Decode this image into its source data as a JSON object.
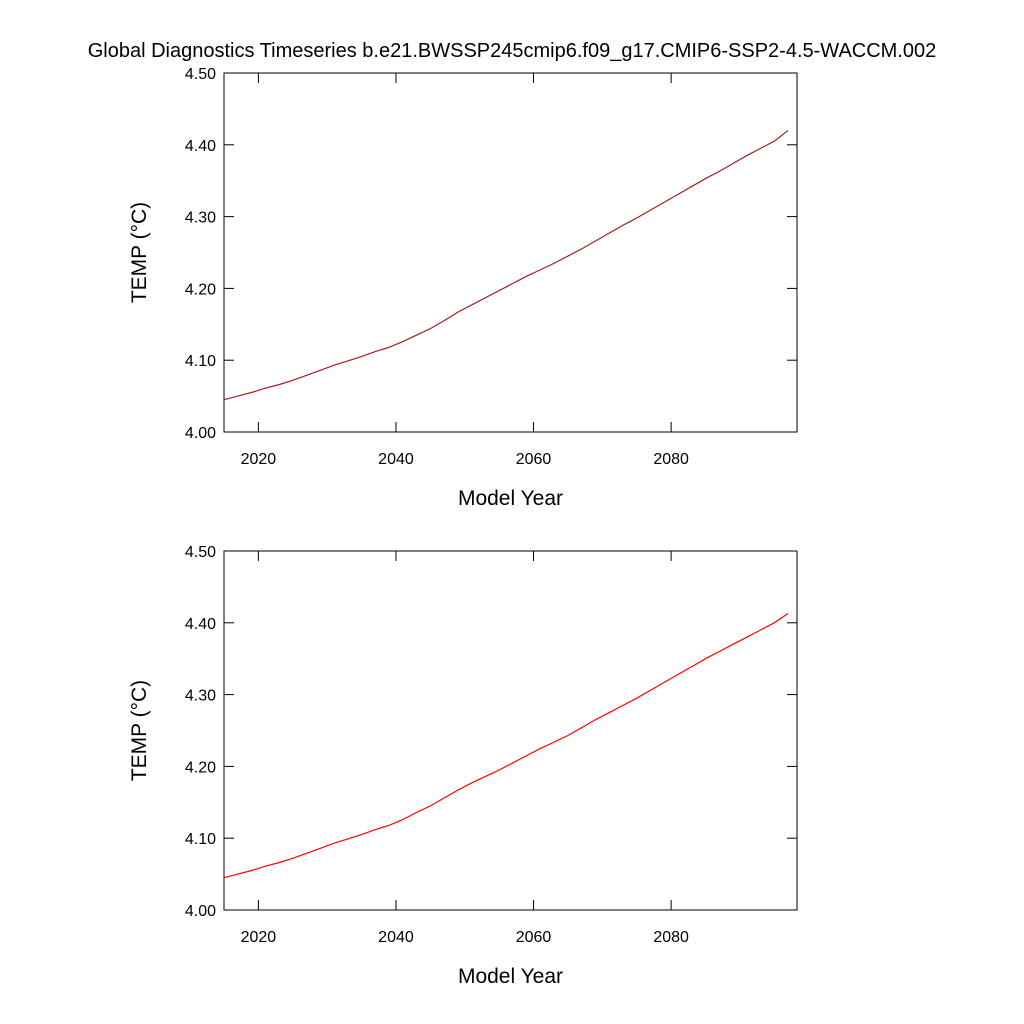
{
  "chart_data": [
    {
      "type": "line",
      "title": "Global Diagnostics Timeseries b.e21.BWSSP245cmip6.f09_g17.CMIP6-SSP2-4.5-WACCM.002",
      "x_label": "Model Year",
      "y_label": "TEMP (°C)",
      "x": [
        2015,
        2017,
        2019,
        2021,
        2023,
        2025,
        2027,
        2029,
        2031,
        2033,
        2035,
        2037,
        2039,
        2041,
        2043,
        2045,
        2047,
        2049,
        2051,
        2053,
        2055,
        2057,
        2059,
        2061,
        2063,
        2065,
        2067,
        2069,
        2071,
        2073,
        2075,
        2077,
        2079,
        2081,
        2083,
        2085,
        2087,
        2089,
        2091,
        2093,
        2095,
        2097
      ],
      "series": [
        {
          "color": "#a02020",
          "values": [
            4.045,
            4.05,
            4.055,
            4.061,
            4.066,
            4.072,
            4.079,
            4.086,
            4.093,
            4.099,
            4.105,
            4.112,
            4.118,
            4.126,
            4.135,
            4.144,
            4.155,
            4.167,
            4.177,
            4.187,
            4.197,
            4.207,
            4.217,
            4.226,
            4.235,
            4.245,
            4.255,
            4.266,
            4.277,
            4.288,
            4.298,
            4.309,
            4.32,
            4.331,
            4.342,
            4.353,
            4.363,
            4.374,
            4.385,
            4.395,
            4.405,
            4.42
          ]
        }
      ],
      "xlim": [
        2015,
        2098.3
      ],
      "xticks": [
        2020,
        2040,
        2060,
        2080
      ],
      "ylim": [
        4.0,
        4.5
      ],
      "yticks": [
        {
          "value": 4.0,
          "label": "4.00"
        },
        {
          "value": 4.1,
          "label": "4.10"
        },
        {
          "value": 4.2,
          "label": "4.20"
        },
        {
          "value": 4.3,
          "label": "4.30"
        },
        {
          "value": 4.4,
          "label": "4.40"
        },
        {
          "value": 4.5,
          "label": "4.50"
        }
      ]
    },
    {
      "type": "line",
      "x_label": "Model Year",
      "y_label": "TEMP (°C)",
      "x": [
        2015,
        2017,
        2019,
        2021,
        2023,
        2025,
        2027,
        2029,
        2031,
        2033,
        2035,
        2037,
        2039,
        2041,
        2043,
        2045,
        2047,
        2049,
        2051,
        2053,
        2055,
        2057,
        2059,
        2061,
        2063,
        2065,
        2067,
        2069,
        2071,
        2073,
        2075,
        2077,
        2079,
        2081,
        2083,
        2085,
        2087,
        2089,
        2091,
        2093,
        2095,
        2097
      ],
      "series": [
        {
          "color": "#ff0000",
          "values": [
            4.045,
            4.05,
            4.055,
            4.061,
            4.066,
            4.072,
            4.079,
            4.086,
            4.093,
            4.099,
            4.105,
            4.112,
            4.118,
            4.126,
            4.136,
            4.145,
            4.156,
            4.167,
            4.177,
            4.186,
            4.195,
            4.205,
            4.215,
            4.225,
            4.234,
            4.243,
            4.254,
            4.265,
            4.275,
            4.285,
            4.295,
            4.306,
            4.317,
            4.328,
            4.339,
            4.35,
            4.36,
            4.37,
            4.38,
            4.39,
            4.4,
            4.413
          ]
        }
      ],
      "xlim": [
        2015,
        2098.3
      ],
      "xticks": [
        2020,
        2040,
        2060,
        2080
      ],
      "ylim": [
        4.0,
        4.5
      ],
      "yticks": [
        {
          "value": 4.0,
          "label": "4.00"
        },
        {
          "value": 4.1,
          "label": "4.10"
        },
        {
          "value": 4.2,
          "label": "4.20"
        },
        {
          "value": 4.3,
          "label": "4.30"
        },
        {
          "value": 4.4,
          "label": "4.40"
        },
        {
          "value": 4.5,
          "label": "4.50"
        }
      ]
    }
  ]
}
